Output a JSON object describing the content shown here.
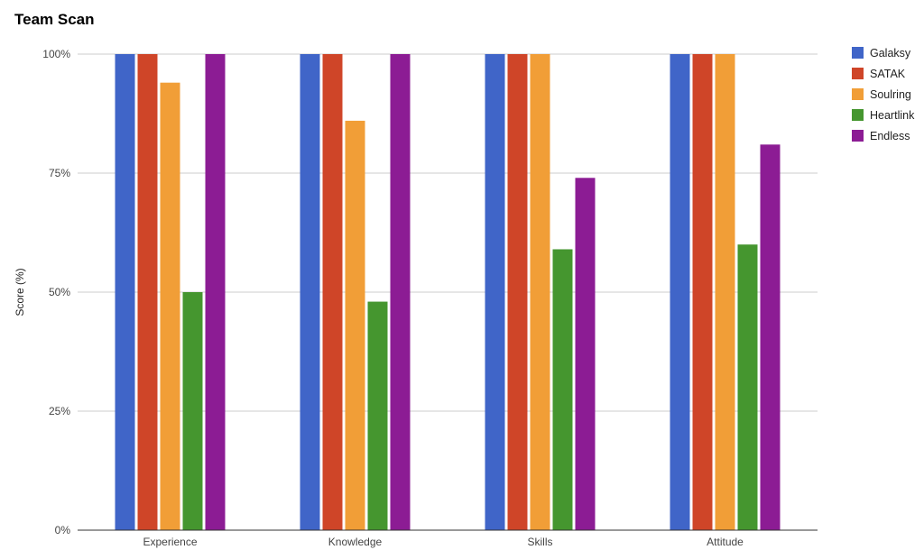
{
  "chart_data": {
    "type": "bar",
    "title": "Team Scan",
    "xlabel": "",
    "ylabel": "Score (%)",
    "ylim": [
      0,
      100
    ],
    "yticks": [
      0,
      25,
      50,
      75,
      100
    ],
    "ytick_labels": [
      "0%",
      "25%",
      "50%",
      "75%",
      "100%"
    ],
    "grid": true,
    "legend_position": "right",
    "categories": [
      "Experience",
      "Knowledge",
      "Skills",
      "Attitude"
    ],
    "series": [
      {
        "name": "Galaksy",
        "color": "#4065c8",
        "values": [
          100,
          100,
          100,
          100
        ]
      },
      {
        "name": "SATAK",
        "color": "#cf4528",
        "values": [
          100,
          100,
          100,
          100
        ]
      },
      {
        "name": "Soulring",
        "color": "#f19e37",
        "values": [
          94,
          86,
          100,
          100
        ]
      },
      {
        "name": "Heartlink",
        "color": "#45962f",
        "values": [
          50,
          48,
          59,
          60
        ]
      },
      {
        "name": "Endless",
        "color": "#8c1c94",
        "values": [
          100,
          100,
          74,
          81
        ]
      }
    ]
  }
}
